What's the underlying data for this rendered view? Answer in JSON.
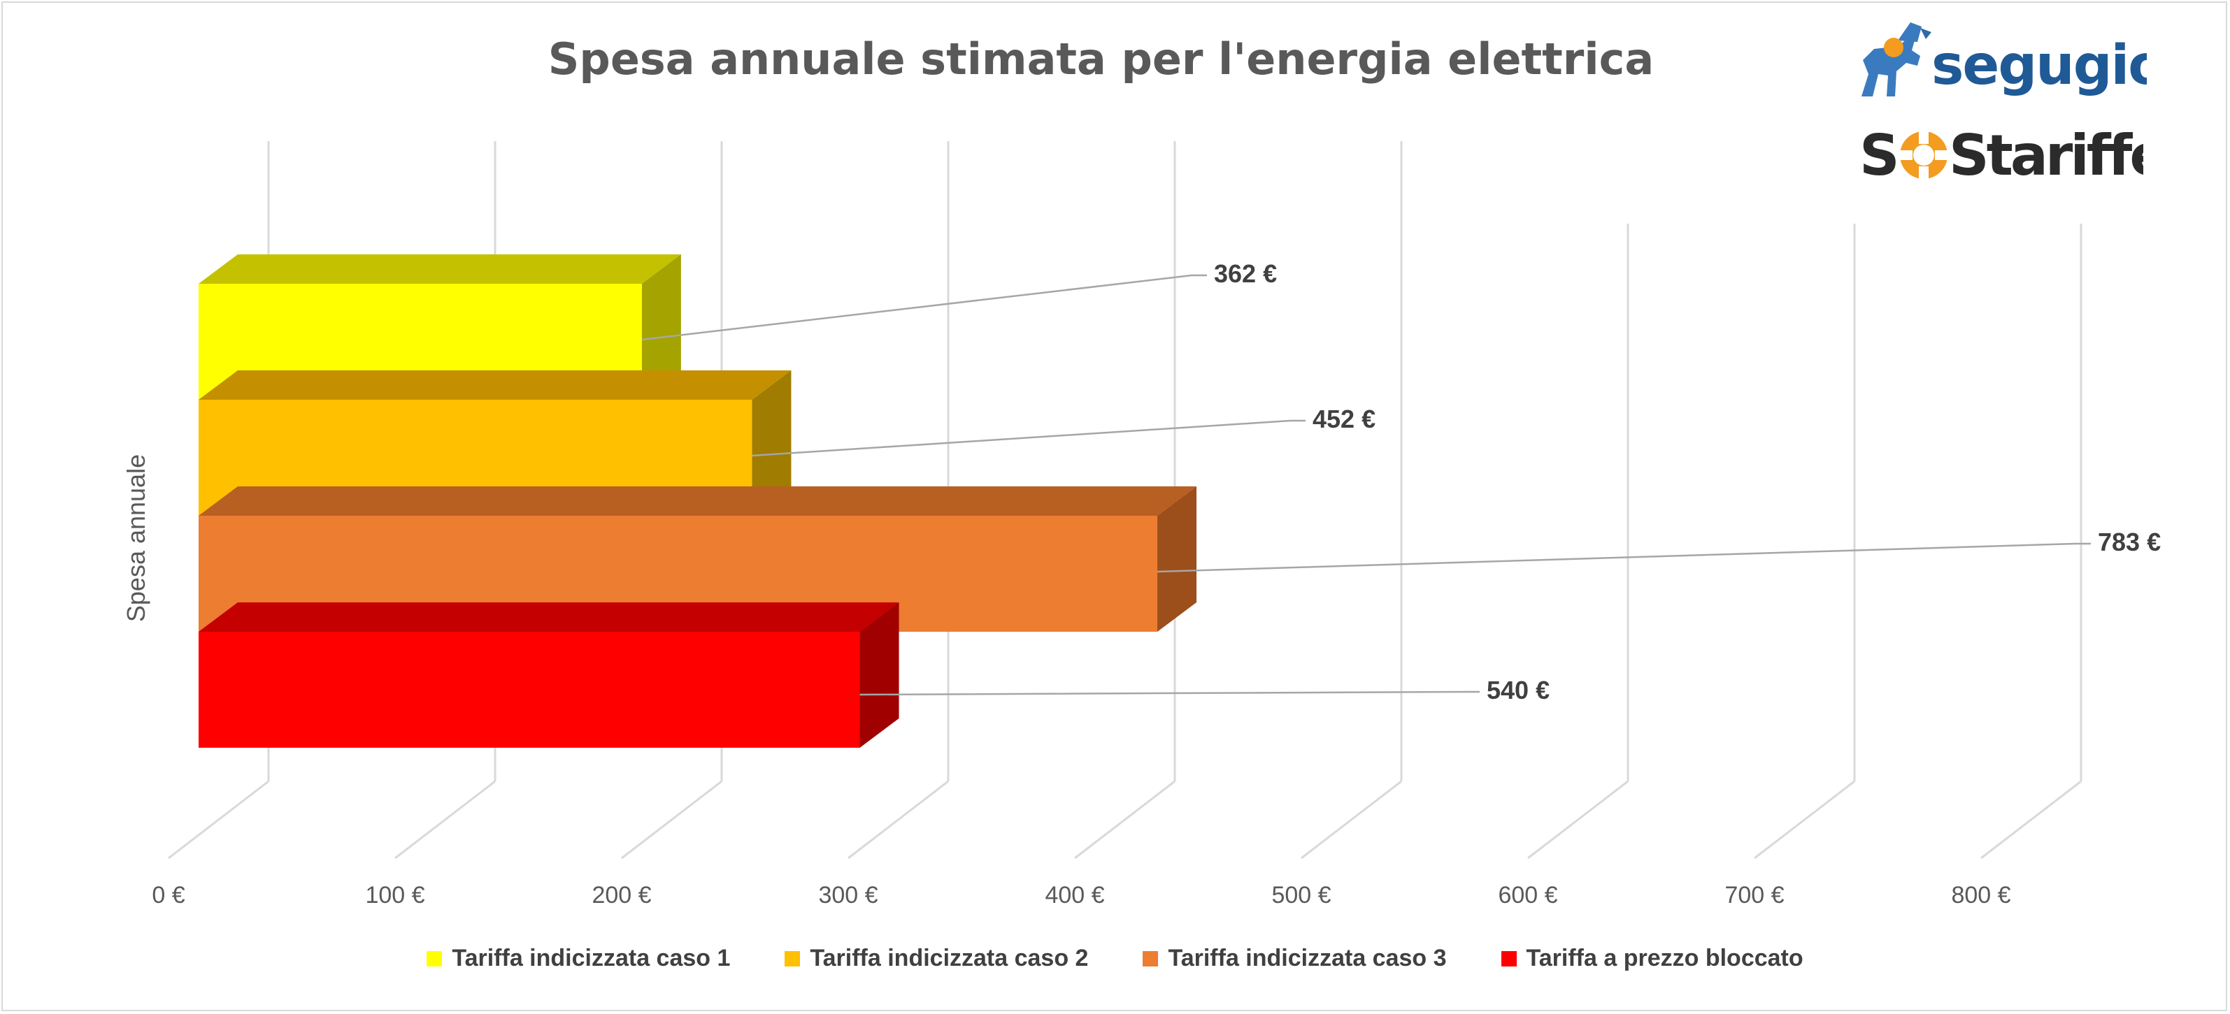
{
  "chart_data": {
    "type": "bar",
    "orientation": "horizontal",
    "title": "Spesa annuale stimata per l'energia elettrica",
    "ylabel": "Spesa annuale",
    "xlim": [
      0,
      800
    ],
    "x_ticks": [
      "0 €",
      "100 €",
      "200 €",
      "300 €",
      "400 €",
      "500 €",
      "600 €",
      "700 €",
      "800 €"
    ],
    "categories": [
      "Spesa annuale"
    ],
    "series": [
      {
        "name": "Tariffa indicizzata caso 1",
        "values": [
          362
        ],
        "label": "362 €",
        "color": "#ffff00",
        "top_color": "#c4c200",
        "side_color": "#a5a300"
      },
      {
        "name": "Tariffa indicizzata caso 2",
        "values": [
          452
        ],
        "label": "452 €",
        "color": "#ffc000",
        "top_color": "#c49000",
        "side_color": "#a07c00"
      },
      {
        "name": "Tariffa indicizzata caso 3",
        "values": [
          783
        ],
        "label": "783 €",
        "color": "#ed7d31",
        "top_color": "#b85f22",
        "side_color": "#9c4e1b"
      },
      {
        "name": "Tariffa a prezzo bloccato",
        "values": [
          540
        ],
        "label": "540 €",
        "color": "#ff0000",
        "top_color": "#c40000",
        "side_color": "#a00000"
      }
    ],
    "legend_position": "bottom",
    "grid": true
  },
  "logos": {
    "segugio": "segugio.it",
    "sostariffe": "SOStariffe.it"
  }
}
